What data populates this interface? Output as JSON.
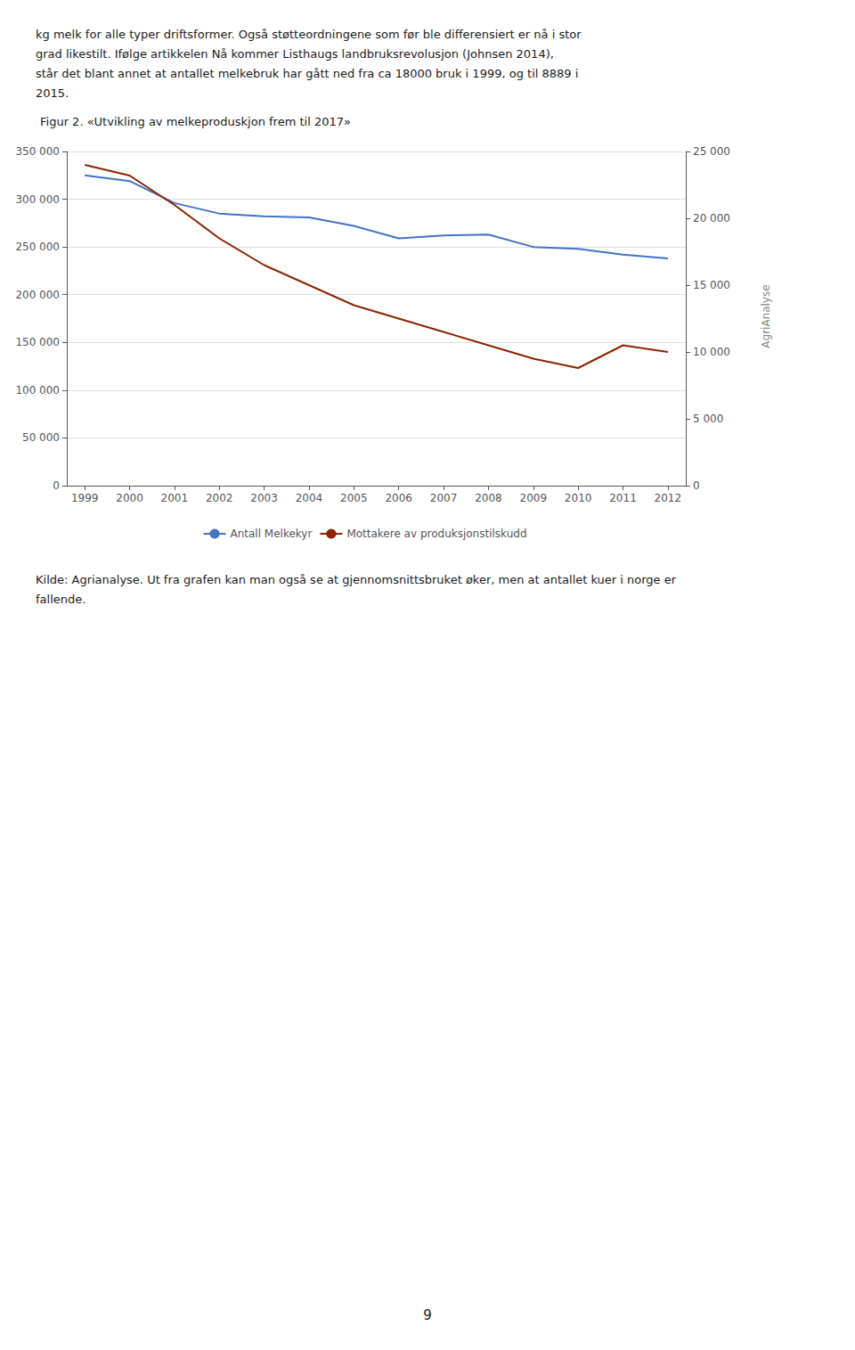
{
  "chart_data": {
    "type": "line",
    "title": "Figur 2. «Utvikling av melkeproduskjon frem til 2017»",
    "x": [
      1999,
      2000,
      2001,
      2002,
      2003,
      2004,
      2005,
      2006,
      2007,
      2008,
      2009,
      2010,
      2011,
      2012
    ],
    "xlim": [
      1998.6,
      2012.4
    ],
    "xticks": [
      1999,
      2000,
      2001,
      2002,
      2003,
      2004,
      2005,
      2006,
      2007,
      2008,
      2009,
      2010,
      2011,
      2012
    ],
    "series": [
      {
        "name": "Antall Melkekyr",
        "color": "#4472C4",
        "axis": "y",
        "values": [
          325000,
          319000,
          296000,
          285000,
          282000,
          281000,
          272000,
          259000,
          262000,
          263000,
          250000,
          248000,
          242000,
          238000
        ]
      },
      {
        "name": "Mottakere av produksjonstilskudd",
        "color": "#8B2500",
        "axis": "y2",
        "values": [
          24000,
          23200,
          21000,
          18500,
          16500,
          15000,
          13500,
          12500,
          11500,
          10500,
          9500,
          8800,
          10500,
          10000
        ]
      }
    ],
    "ylim": [
      0,
      350000
    ],
    "yticks": [
      0,
      {
        "value": 50000,
        "label": "50 000"
      },
      {
        "value": 100000,
        "label": "100 000"
      },
      {
        "value": 150000,
        "label": "150 000"
      },
      {
        "value": 200000,
        "label": "200 000"
      },
      {
        "value": 250000,
        "label": "250 000"
      },
      {
        "value": 300000,
        "label": "300 000"
      },
      {
        "value": 350000,
        "label": "350 000"
      }
    ],
    "y2lim": [
      0,
      25000
    ],
    "y2ticks": [
      0,
      {
        "value": 5000,
        "label": "5 000"
      },
      {
        "value": 10000,
        "label": "10 000"
      },
      {
        "value": 15000,
        "label": "15 000"
      },
      {
        "value": 20000,
        "label": "20 000"
      },
      {
        "value": 25000,
        "label": "25 000"
      }
    ],
    "grid": true,
    "legend": "bottom",
    "annotations": [
      "AgriAnalyse"
    ]
  },
  "text_above": [
    "kg melk for alle typer driftsformer. Også støtteordningene som før ble differensiert er nå i stor",
    "grad likestilt. Ifølge artikkelen Nå kommer Listhaugs landbruksrevolusjon (Johnsen 2014),",
    "står det blant annet at antallet melkebruk har gått ned fra ca 18000 bruk i 1999, og til 8889 i",
    "2015."
  ],
  "text_below": [
    "Kilde: Agrianalyse. Ut fra grafen kan man også se at gjennomsnittsbruket øker, men at antallet kuer i norge er",
    "fallende."
  ],
  "page_number": "9"
}
